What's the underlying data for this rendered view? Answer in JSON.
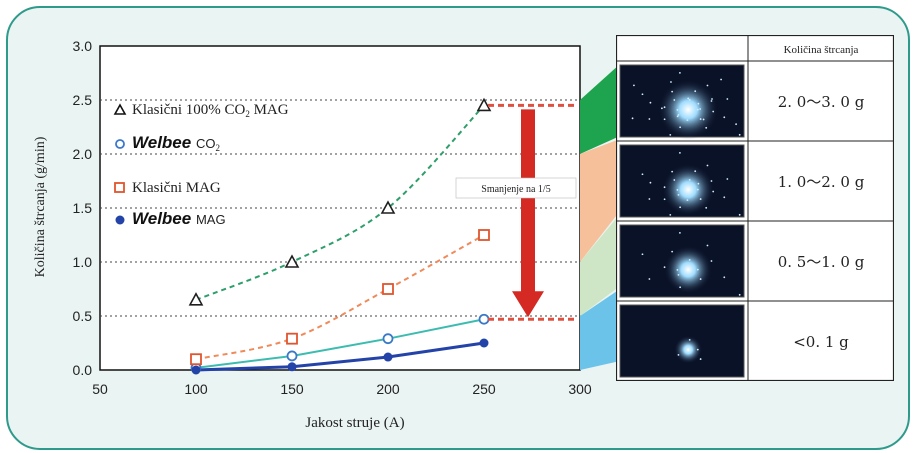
{
  "chart_data": {
    "type": "line",
    "xlabel": "Jakost struje (A)",
    "ylabel": "Količina štrcanja (g/min)",
    "xlim": [
      50,
      300
    ],
    "ylim": [
      0,
      3.0
    ],
    "xticks": [
      "50",
      "100",
      "150",
      "200",
      "250",
      "300"
    ],
    "yticks": [
      "0.0",
      "0.5",
      "1.0",
      "1.5",
      "2.0",
      "2.5",
      "3.0"
    ],
    "grid": "horizontal dotted",
    "series": [
      {
        "name": "Klasični 100% CO2 MAG",
        "marker": "triangle",
        "color": "#1f1f1f",
        "line_color": "#2e9e6a",
        "x": [
          100,
          150,
          200,
          250
        ],
        "y": [
          0.65,
          1.0,
          1.5,
          2.45
        ]
      },
      {
        "name": "Welbee CO2",
        "marker": "open-circle",
        "color": "#3a78c9",
        "line_color": "#3cbcb0",
        "x": [
          100,
          150,
          200,
          250
        ],
        "y": [
          0.02,
          0.13,
          0.29,
          0.47
        ]
      },
      {
        "name": "Klasični MAG",
        "marker": "open-square",
        "color": "#e0552e",
        "line_color": "#f08a5a",
        "x": [
          100,
          150,
          200,
          250
        ],
        "y": [
          0.1,
          0.29,
          0.75,
          1.25
        ]
      },
      {
        "name": "Welbee MAG",
        "marker": "filled-circle",
        "color": "#2343a8",
        "line_color": "#2343a8",
        "x": [
          100,
          150,
          200,
          250
        ],
        "y": [
          0.0,
          0.03,
          0.12,
          0.25
        ]
      }
    ],
    "legend": {
      "entries": [
        {
          "prefix": "",
          "text": "Klasični 100% CO",
          "sub": "2",
          "suffix": " MAG"
        },
        {
          "prefix": "Welbee",
          "text": "CO",
          "sub": "2",
          "suffix": ""
        },
        {
          "prefix": "",
          "text": "Klasični MAG",
          "sub": "",
          "suffix": ""
        },
        {
          "prefix": "Welbee",
          "text": "MAG",
          "sub": "",
          "suffix": ""
        }
      ]
    },
    "annotation": {
      "text": "Smanjenje na 1/5",
      "from": 2.45,
      "to": 0.47
    },
    "colors": {
      "red_arrow": "#d42a23",
      "frame": "#2e9a8c",
      "background": "#eaf4f2"
    }
  },
  "side_table": {
    "header": "Količina štrcanja",
    "rows": [
      {
        "amount": "2. 0～3. 0  g",
        "band_color": "#1ea34e"
      },
      {
        "amount": "1. 0～2. 0  g",
        "band_color": "#f6c09a"
      },
      {
        "amount": "0. 5～1. 0  g",
        "band_color": "#cfe6c6"
      },
      {
        "amount": "<0. 1  g",
        "band_color": "#6cc3ea"
      }
    ]
  }
}
